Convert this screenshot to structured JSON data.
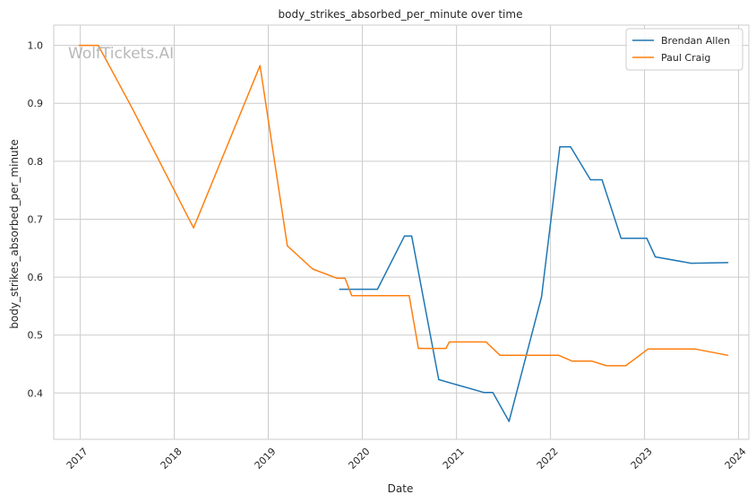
{
  "chart_data": {
    "type": "line",
    "title": "body_strikes_absorbed_per_minute over time",
    "xlabel": "Date",
    "ylabel": "body_strikes_absorbed_per_minute",
    "watermark": "WolfTickets.AI",
    "xlim": [
      "2016-09-20",
      "2024-02-10"
    ],
    "ylim": [
      0.32,
      1.035
    ],
    "x_ticks": [
      "2017",
      "2018",
      "2019",
      "2020",
      "2021",
      "2022",
      "2023",
      "2024"
    ],
    "y_ticks": [
      "0.4",
      "0.5",
      "0.6",
      "0.7",
      "0.8",
      "0.9",
      "1.0"
    ],
    "grid": true,
    "legend_position": "top-right",
    "series": [
      {
        "name": "Brendan Allen",
        "color": "#1f77b4",
        "points": [
          [
            "2019-10-05",
            0.579
          ],
          [
            "2020-02-29",
            0.579
          ],
          [
            "2020-06-13",
            0.671
          ],
          [
            "2020-07-11",
            0.671
          ],
          [
            "2020-10-24",
            0.423
          ],
          [
            "2021-04-17",
            0.401
          ],
          [
            "2021-05-22",
            0.401
          ],
          [
            "2021-07-24",
            0.351
          ],
          [
            "2021-11-27",
            0.566
          ],
          [
            "2022-02-06",
            0.825
          ],
          [
            "2022-03-20",
            0.825
          ],
          [
            "2022-06-05",
            0.768
          ],
          [
            "2022-07-20",
            0.768
          ],
          [
            "2022-10-02",
            0.667
          ],
          [
            "2023-01-10",
            0.667
          ],
          [
            "2023-02-12",
            0.635
          ],
          [
            "2023-07-01",
            0.624
          ],
          [
            "2023-11-21",
            0.625
          ]
        ]
      },
      {
        "name": "Paul Craig",
        "color": "#ff7f0e",
        "points": [
          [
            "2016-12-27",
            1.0
          ],
          [
            "2017-03-12",
            1.0
          ],
          [
            "2017-07-20",
            0.893
          ],
          [
            "2018-03-17",
            0.685
          ],
          [
            "2018-11-30",
            0.965
          ],
          [
            "2019-03-16",
            0.654
          ],
          [
            "2019-06-22",
            0.614
          ],
          [
            "2019-09-26",
            0.598
          ],
          [
            "2019-10-26",
            0.598
          ],
          [
            "2019-11-21",
            0.568
          ],
          [
            "2020-07-01",
            0.568
          ],
          [
            "2020-08-06",
            0.477
          ],
          [
            "2020-11-21",
            0.477
          ],
          [
            "2020-12-04",
            0.488
          ],
          [
            "2021-04-26",
            0.488
          ],
          [
            "2021-06-19",
            0.465
          ],
          [
            "2021-12-11",
            0.465
          ],
          [
            "2022-02-02",
            0.465
          ],
          [
            "2022-03-26",
            0.455
          ],
          [
            "2022-06-11",
            0.455
          ],
          [
            "2022-08-06",
            0.447
          ],
          [
            "2022-10-20",
            0.447
          ],
          [
            "2023-01-15",
            0.476
          ],
          [
            "2023-07-15",
            0.476
          ],
          [
            "2023-11-21",
            0.465
          ]
        ]
      }
    ]
  }
}
